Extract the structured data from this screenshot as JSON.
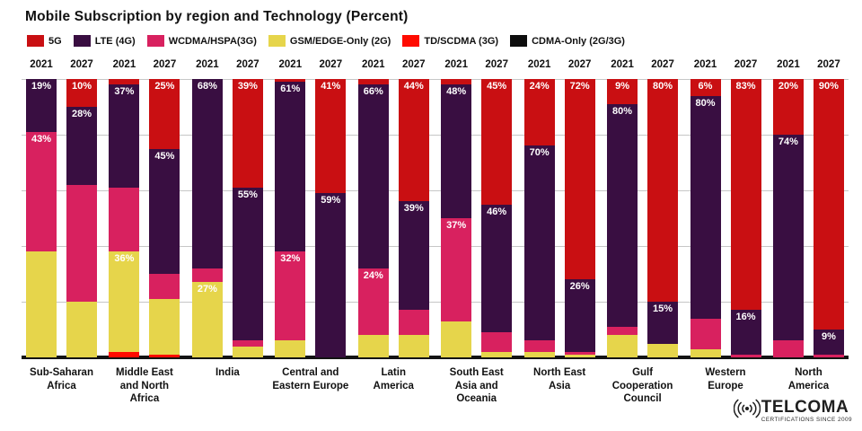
{
  "header": {
    "title": "Mobile Subscription by region and Technology (Percent)"
  },
  "logo": {
    "name": "TELCOMA",
    "tagline": "CERTIFICATIONS SINCE 2009",
    "icon": "radio-waves-icon"
  },
  "chart_data": {
    "type": "bar",
    "subtype": "stacked-100-percent",
    "title": "Mobile Subscription by region and Technology (Percent)",
    "unit": "%",
    "ylim": [
      0,
      100
    ],
    "gridline_interval": 20,
    "grid": true,
    "legend_position": "top",
    "years": [
      "2021",
      "2027"
    ],
    "series_order": [
      "5G",
      "LTE (4G)",
      "WCDMA/HSPA(3G)",
      "GSM/EDGE-Only (2G)",
      "TD/SCDMA (3G)",
      "CDMA-Only (2G/3G)"
    ],
    "series_colors": {
      "5G": "#c90f12",
      "LTE (4G)": "#390e41",
      "WCDMA/HSPA(3G)": "#d8215f",
      "GSM/EDGE-Only (2G)": "#e6d54b",
      "TD/SCDMA (3G)": "#ff0b00",
      "CDMA-Only (2G/3G)": "#0d0d0d"
    },
    "regions": [
      {
        "name": "Sub-Saharan\nAfrica",
        "bars": [
          {
            "year": "2021",
            "segments": [
              {
                "series": "LTE (4G)",
                "value": 19,
                "labeled": true
              },
              {
                "series": "WCDMA/HSPA(3G)",
                "value": 43,
                "labeled": true
              },
              {
                "series": "GSM/EDGE-Only (2G)",
                "value": 38,
                "labeled": false
              }
            ]
          },
          {
            "year": "2027",
            "segments": [
              {
                "series": "5G",
                "value": 10,
                "labeled": true
              },
              {
                "series": "LTE (4G)",
                "value": 28,
                "labeled": true
              },
              {
                "series": "WCDMA/HSPA(3G)",
                "value": 42,
                "labeled": false
              },
              {
                "series": "GSM/EDGE-Only (2G)",
                "value": 20,
                "labeled": false
              }
            ]
          }
        ]
      },
      {
        "name": "Middle East\nand North\nAfrica",
        "bars": [
          {
            "year": "2021",
            "segments": [
              {
                "series": "5G",
                "value": 2,
                "labeled": false
              },
              {
                "series": "LTE (4G)",
                "value": 37,
                "labeled": true
              },
              {
                "series": "WCDMA/HSPA(3G)",
                "value": 23,
                "labeled": false
              },
              {
                "series": "GSM/EDGE-Only (2G)",
                "value": 36,
                "labeled": true
              },
              {
                "series": "TD/SCDMA (3G)",
                "value": 2,
                "labeled": false
              }
            ]
          },
          {
            "year": "2027",
            "segments": [
              {
                "series": "5G",
                "value": 25,
                "labeled": true
              },
              {
                "series": "LTE (4G)",
                "value": 45,
                "labeled": true
              },
              {
                "series": "WCDMA/HSPA(3G)",
                "value": 9,
                "labeled": false
              },
              {
                "series": "GSM/EDGE-Only (2G)",
                "value": 20,
                "labeled": false
              },
              {
                "series": "TD/SCDMA (3G)",
                "value": 1,
                "labeled": false
              }
            ]
          }
        ]
      },
      {
        "name": "India",
        "bars": [
          {
            "year": "2021",
            "segments": [
              {
                "series": "LTE (4G)",
                "value": 68,
                "labeled": true
              },
              {
                "series": "WCDMA/HSPA(3G)",
                "value": 5,
                "labeled": false
              },
              {
                "series": "GSM/EDGE-Only (2G)",
                "value": 27,
                "labeled": true
              }
            ]
          },
          {
            "year": "2027",
            "segments": [
              {
                "series": "5G",
                "value": 39,
                "labeled": true
              },
              {
                "series": "LTE (4G)",
                "value": 55,
                "labeled": true
              },
              {
                "series": "WCDMA/HSPA(3G)",
                "value": 2,
                "labeled": false
              },
              {
                "series": "GSM/EDGE-Only (2G)",
                "value": 4,
                "labeled": false
              }
            ]
          }
        ]
      },
      {
        "name": "Central and\nEastern Europe",
        "bars": [
          {
            "year": "2021",
            "segments": [
              {
                "series": "5G",
                "value": 1,
                "labeled": false
              },
              {
                "series": "LTE (4G)",
                "value": 61,
                "labeled": true
              },
              {
                "series": "WCDMA/HSPA(3G)",
                "value": 32,
                "labeled": true
              },
              {
                "series": "GSM/EDGE-Only (2G)",
                "value": 6,
                "labeled": false
              }
            ]
          },
          {
            "year": "2027",
            "segments": [
              {
                "series": "5G",
                "value": 41,
                "labeled": true
              },
              {
                "series": "LTE (4G)",
                "value": 59,
                "labeled": true
              }
            ]
          }
        ]
      },
      {
        "name": "Latin\nAmerica",
        "bars": [
          {
            "year": "2021",
            "segments": [
              {
                "series": "5G",
                "value": 2,
                "labeled": false
              },
              {
                "series": "LTE (4G)",
                "value": 66,
                "labeled": true
              },
              {
                "series": "WCDMA/HSPA(3G)",
                "value": 24,
                "labeled": true
              },
              {
                "series": "GSM/EDGE-Only (2G)",
                "value": 8,
                "labeled": false
              }
            ]
          },
          {
            "year": "2027",
            "segments": [
              {
                "series": "5G",
                "value": 44,
                "labeled": true
              },
              {
                "series": "LTE (4G)",
                "value": 39,
                "labeled": true
              },
              {
                "series": "WCDMA/HSPA(3G)",
                "value": 9,
                "labeled": false
              },
              {
                "series": "GSM/EDGE-Only (2G)",
                "value": 8,
                "labeled": false
              }
            ]
          }
        ]
      },
      {
        "name": "South East\nAsia and\nOceania",
        "bars": [
          {
            "year": "2021",
            "segments": [
              {
                "series": "5G",
                "value": 2,
                "labeled": false
              },
              {
                "series": "LTE (4G)",
                "value": 48,
                "labeled": true
              },
              {
                "series": "WCDMA/HSPA(3G)",
                "value": 37,
                "labeled": true
              },
              {
                "series": "GSM/EDGE-Only (2G)",
                "value": 13,
                "labeled": false
              }
            ]
          },
          {
            "year": "2027",
            "segments": [
              {
                "series": "5G",
                "value": 45,
                "labeled": true
              },
              {
                "series": "LTE (4G)",
                "value": 46,
                "labeled": true
              },
              {
                "series": "WCDMA/HSPA(3G)",
                "value": 7,
                "labeled": false
              },
              {
                "series": "GSM/EDGE-Only (2G)",
                "value": 2,
                "labeled": false
              }
            ]
          }
        ]
      },
      {
        "name": "North East\nAsia",
        "bars": [
          {
            "year": "2021",
            "segments": [
              {
                "series": "5G",
                "value": 24,
                "labeled": true
              },
              {
                "series": "LTE (4G)",
                "value": 70,
                "labeled": true
              },
              {
                "series": "WCDMA/HSPA(3G)",
                "value": 4,
                "labeled": false
              },
              {
                "series": "GSM/EDGE-Only (2G)",
                "value": 2,
                "labeled": false
              }
            ]
          },
          {
            "year": "2027",
            "segments": [
              {
                "series": "5G",
                "value": 72,
                "labeled": true
              },
              {
                "series": "LTE (4G)",
                "value": 26,
                "labeled": true
              },
              {
                "series": "WCDMA/HSPA(3G)",
                "value": 1,
                "labeled": false
              },
              {
                "series": "GSM/EDGE-Only (2G)",
                "value": 1,
                "labeled": false
              }
            ]
          }
        ]
      },
      {
        "name": "Gulf\nCooperation\nCouncil",
        "bars": [
          {
            "year": "2021",
            "segments": [
              {
                "series": "5G",
                "value": 9,
                "labeled": true
              },
              {
                "series": "LTE (4G)",
                "value": 80,
                "labeled": true
              },
              {
                "series": "WCDMA/HSPA(3G)",
                "value": 3,
                "labeled": false
              },
              {
                "series": "GSM/EDGE-Only (2G)",
                "value": 8,
                "labeled": false
              }
            ]
          },
          {
            "year": "2027",
            "segments": [
              {
                "series": "5G",
                "value": 80,
                "labeled": true
              },
              {
                "series": "LTE (4G)",
                "value": 15,
                "labeled": true
              },
              {
                "series": "GSM/EDGE-Only (2G)",
                "value": 5,
                "labeled": false
              }
            ]
          }
        ]
      },
      {
        "name": "Western\nEurope",
        "bars": [
          {
            "year": "2021",
            "segments": [
              {
                "series": "5G",
                "value": 6,
                "labeled": true
              },
              {
                "series": "LTE (4G)",
                "value": 80,
                "labeled": true
              },
              {
                "series": "WCDMA/HSPA(3G)",
                "value": 11,
                "labeled": false
              },
              {
                "series": "GSM/EDGE-Only (2G)",
                "value": 3,
                "labeled": false
              }
            ]
          },
          {
            "year": "2027",
            "segments": [
              {
                "series": "5G",
                "value": 83,
                "labeled": true
              },
              {
                "series": "LTE (4G)",
                "value": 16,
                "labeled": true
              },
              {
                "series": "WCDMA/HSPA(3G)",
                "value": 1,
                "labeled": false
              }
            ]
          }
        ]
      },
      {
        "name": "North\nAmerica",
        "bars": [
          {
            "year": "2021",
            "segments": [
              {
                "series": "5G",
                "value": 20,
                "labeled": true
              },
              {
                "series": "LTE (4G)",
                "value": 74,
                "labeled": true
              },
              {
                "series": "WCDMA/HSPA(3G)",
                "value": 6,
                "labeled": false
              }
            ]
          },
          {
            "year": "2027",
            "segments": [
              {
                "series": "5G",
                "value": 90,
                "labeled": true
              },
              {
                "series": "LTE (4G)",
                "value": 9,
                "labeled": true
              },
              {
                "series": "WCDMA/HSPA(3G)",
                "value": 1,
                "labeled": false
              }
            ]
          }
        ]
      }
    ]
  }
}
